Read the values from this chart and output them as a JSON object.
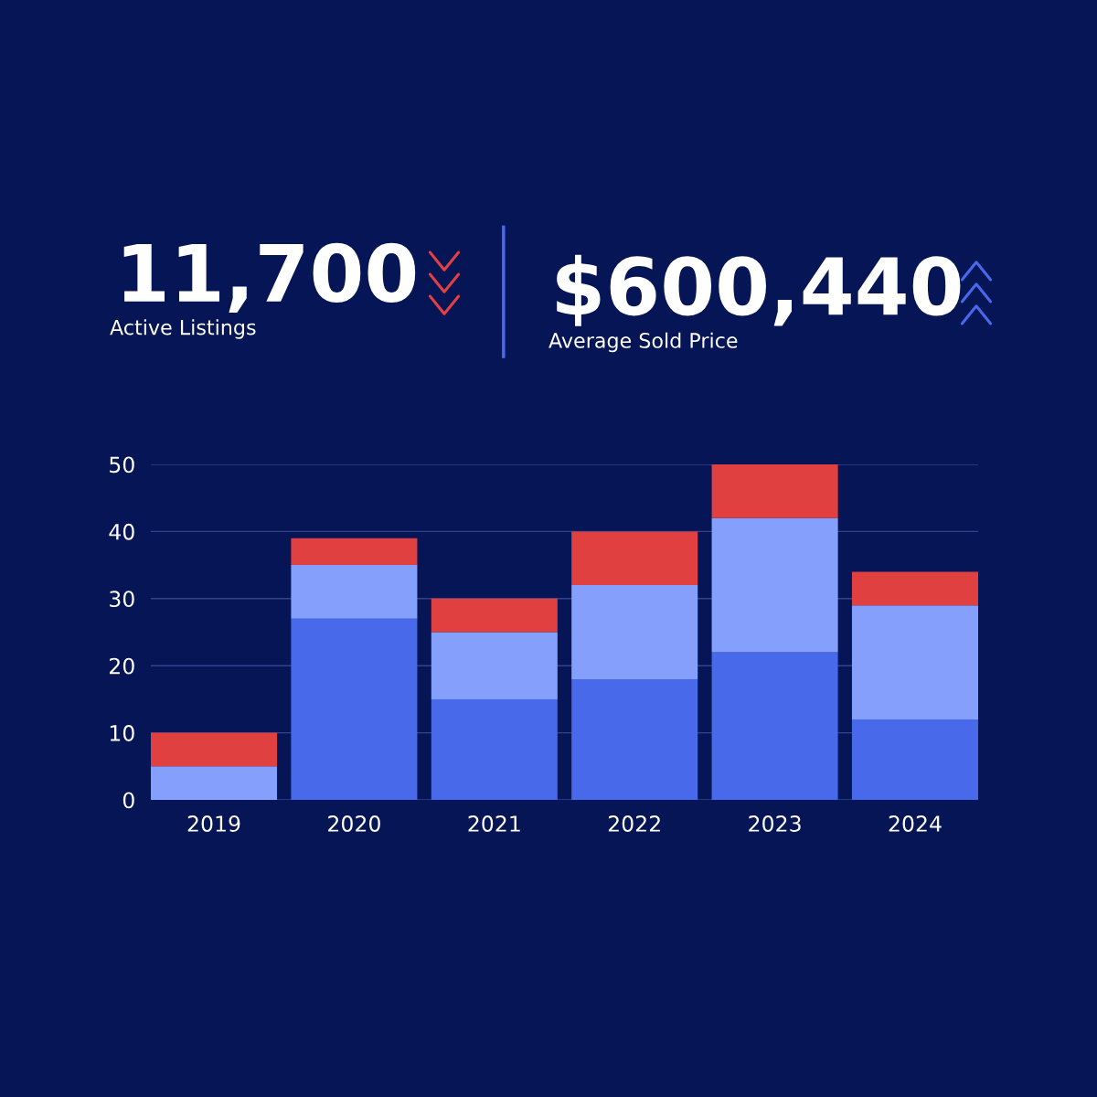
{
  "chart_data": [
    {
      "type": "other",
      "annotations": [
        "11,700",
        "Active Listings",
        "$600,440",
        "Average Sold Price"
      ]
    },
    {
      "type": "bar",
      "stacked": true,
      "categories": [
        "2019",
        "2020",
        "2021",
        "2022",
        "2023",
        "2024"
      ],
      "series": [
        {
          "color": "#4769ea",
          "values": [
            0,
            27,
            15,
            18,
            22,
            12
          ]
        },
        {
          "color": "#84a0fc",
          "values": [
            5,
            8,
            10,
            14,
            20,
            17
          ]
        },
        {
          "color": "#e04040",
          "values": [
            5,
            4,
            5,
            8,
            8,
            5
          ]
        }
      ],
      "ylim": [
        0,
        50
      ],
      "yticks": [
        0,
        10,
        20,
        30,
        40,
        50
      ],
      "grid": "y"
    }
  ]
}
